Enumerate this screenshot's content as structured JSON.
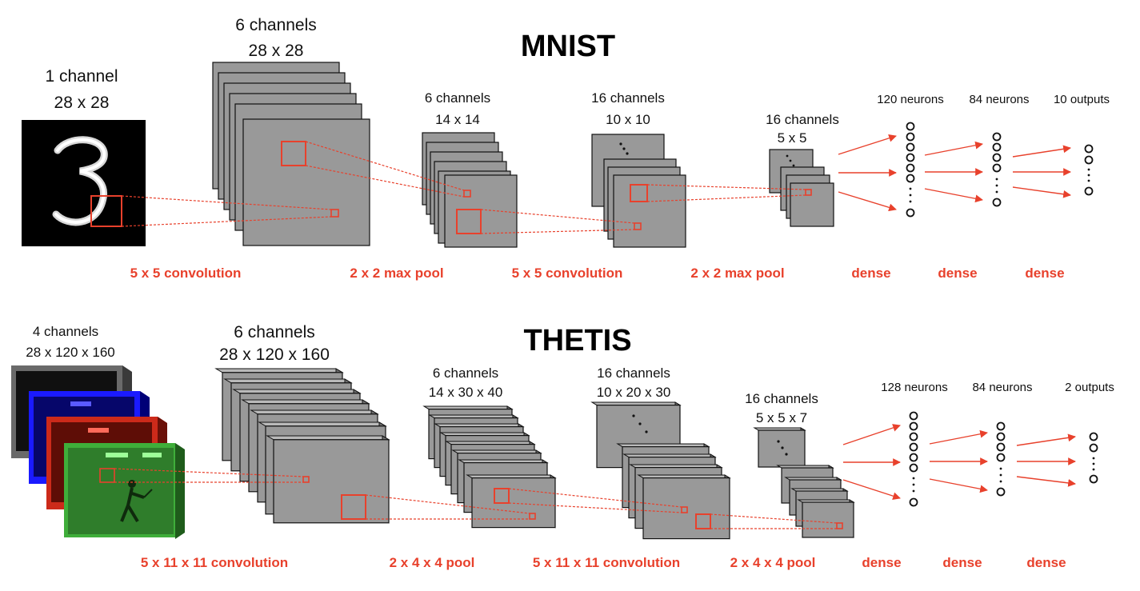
{
  "mnist": {
    "title": "MNIST",
    "input": {
      "channels": "1 channel",
      "size": "28 x 28"
    },
    "conv1": {
      "channels": "6 channels",
      "size": "28 x 28"
    },
    "pool1": {
      "channels": "6 channels",
      "size": "14 x 14"
    },
    "conv2": {
      "channels": "16 channels",
      "size": "10 x 10"
    },
    "pool2": {
      "channels": "16 channels",
      "size": "5 x 5"
    },
    "dense_layers": [
      "120 neurons",
      "84 neurons",
      "10 outputs"
    ],
    "operations": [
      "5 x 5 convolution",
      "2 x 2 max pool",
      "5 x 5 convolution",
      "2 x 2 max pool",
      "dense",
      "dense",
      "dense"
    ]
  },
  "thetis": {
    "title": "THETIS",
    "input": {
      "channels": "4 channels",
      "size": "28 x 120 x 160"
    },
    "conv1": {
      "channels": "6 channels",
      "size": "28 x 120 x 160"
    },
    "pool1": {
      "channels": "6 channels",
      "size": "14 x 30 x 40"
    },
    "conv2": {
      "channels": "16 channels",
      "size": "10 x 20 x 30"
    },
    "pool2": {
      "channels": "16 channels",
      "size": "5 x 5 x 7"
    },
    "dense_layers": [
      "128 neurons",
      "84 neurons",
      "2 outputs"
    ],
    "operations": [
      "5 x 11 x 11 convolution",
      "2 x 4 x 4 pool",
      "5 x 11 x 11 convolution",
      "2 x 4 x 4 pool",
      "dense",
      "dense",
      "dense"
    ]
  },
  "colors": {
    "accent": "#e8412c",
    "feature_map": "#999999",
    "input_channels": [
      "#6a6a6a",
      "#1a1aff",
      "#cc2a1a",
      "#3fae3a"
    ]
  }
}
